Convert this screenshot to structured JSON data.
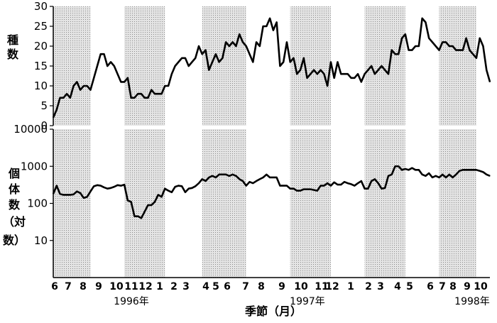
{
  "chart_data": [
    {
      "type": "line",
      "ylabel": [
        "種",
        "数"
      ],
      "ylim": [
        0,
        30
      ],
      "yticks": [
        "0",
        "5",
        "10",
        "15",
        "20",
        "25",
        "30"
      ],
      "grid": false,
      "x": [
        0,
        1,
        2,
        3,
        4,
        5,
        6,
        7,
        8,
        9,
        10,
        11,
        12,
        13,
        14,
        15,
        16,
        17,
        18,
        19,
        20,
        21,
        22,
        23,
        24,
        25,
        26,
        27,
        28,
        29,
        30,
        31,
        32,
        33,
        34,
        35,
        36,
        37,
        38,
        39,
        40,
        41,
        42,
        43,
        44,
        45,
        46,
        47,
        48,
        49,
        50,
        51,
        52,
        53,
        54,
        55,
        56,
        57,
        58,
        59,
        60,
        61,
        62,
        63,
        64,
        65,
        66,
        67,
        68,
        69,
        70,
        71,
        72,
        73,
        74,
        75,
        76,
        77,
        78,
        79,
        80,
        81,
        82,
        83,
        84,
        85,
        86,
        87,
        88,
        89,
        90,
        91,
        92,
        93,
        94,
        95,
        96,
        97,
        98,
        99,
        100,
        101,
        102,
        103,
        104,
        105,
        106,
        107,
        108,
        109,
        110,
        111,
        112,
        113,
        114,
        115,
        116,
        117,
        118,
        119,
        120,
        121,
        122,
        123,
        124,
        125,
        126,
        127,
        128,
        129
      ],
      "values": [
        2,
        4,
        7,
        7,
        8,
        7,
        10,
        11,
        9,
        10,
        10,
        9,
        12,
        15,
        18,
        18,
        15,
        16,
        15,
        13,
        11,
        11,
        12,
        7,
        7,
        8,
        8,
        7,
        7,
        9,
        8,
        8,
        8,
        10,
        10,
        13,
        15,
        16,
        17,
        17,
        15,
        16,
        17,
        20,
        18,
        19,
        14,
        16,
        18,
        16,
        17,
        21,
        20,
        21,
        20,
        23,
        21,
        20,
        18,
        16,
        21,
        20,
        25,
        25,
        27,
        24,
        26,
        15,
        16,
        21,
        16,
        17,
        13,
        14,
        17,
        12,
        13,
        14,
        13,
        14,
        13,
        10,
        16,
        12,
        16,
        13,
        13,
        13,
        12,
        12,
        13,
        11,
        13,
        14,
        15,
        13,
        14,
        15,
        14,
        13,
        19,
        18,
        18,
        22,
        23,
        19,
        19,
        20,
        20,
        27,
        26,
        22,
        21,
        20,
        19,
        21,
        21,
        20,
        20,
        19,
        19,
        19,
        22,
        19,
        18,
        17,
        22,
        20,
        14,
        11
      ]
    },
    {
      "type": "line",
      "ylabel": [
        "個",
        "体",
        "数",
        "（対",
        "数）"
      ],
      "yscale": "log",
      "ylim": [
        1,
        10000
      ],
      "yticks": [
        "10",
        "100",
        "1000",
        "10000"
      ],
      "grid": false,
      "x": [
        0,
        1,
        2,
        3,
        4,
        5,
        6,
        7,
        8,
        9,
        10,
        11,
        12,
        13,
        14,
        15,
        16,
        17,
        18,
        19,
        20,
        21,
        22,
        23,
        24,
        25,
        26,
        27,
        28,
        29,
        30,
        31,
        32,
        33,
        34,
        35,
        36,
        37,
        38,
        39,
        40,
        41,
        42,
        43,
        44,
        45,
        46,
        47,
        48,
        49,
        50,
        51,
        52,
        53,
        54,
        55,
        56,
        57,
        58,
        59,
        60,
        61,
        62,
        63,
        64,
        65,
        66,
        67,
        68,
        69,
        70,
        71,
        72,
        73,
        74,
        75,
        76,
        77,
        78,
        79,
        80,
        81,
        82,
        83,
        84,
        85,
        86,
        87,
        88,
        89,
        90,
        91,
        92,
        93,
        94,
        95,
        96,
        97,
        98,
        99,
        100,
        101,
        102,
        103,
        104,
        105,
        106,
        107,
        108,
        109,
        110,
        111,
        112,
        113,
        114,
        115,
        116,
        117,
        118,
        119,
        120,
        121,
        122,
        123,
        124,
        125,
        126,
        127,
        128,
        129
      ],
      "values": [
        180,
        300,
        180,
        170,
        170,
        170,
        175,
        210,
        190,
        140,
        150,
        210,
        290,
        310,
        300,
        270,
        250,
        260,
        280,
        310,
        300,
        320,
        120,
        110,
        45,
        45,
        40,
        60,
        90,
        90,
        110,
        170,
        150,
        250,
        220,
        200,
        280,
        300,
        290,
        200,
        250,
        260,
        290,
        350,
        450,
        400,
        500,
        550,
        500,
        600,
        600,
        600,
        550,
        600,
        550,
        450,
        400,
        300,
        380,
        350,
        400,
        450,
        500,
        600,
        500,
        500,
        500,
        300,
        300,
        300,
        250,
        250,
        220,
        220,
        240,
        240,
        240,
        230,
        220,
        300,
        300,
        350,
        300,
        370,
        320,
        320,
        380,
        350,
        330,
        300,
        350,
        400,
        250,
        250,
        400,
        450,
        350,
        250,
        260,
        550,
        600,
        1000,
        1000,
        800,
        850,
        800,
        900,
        800,
        800,
        600,
        550,
        650,
        500,
        550,
        500,
        600,
        500,
        600,
        500,
        600,
        750,
        800,
        800,
        800,
        800,
        800,
        750,
        700,
        600,
        550
      ]
    }
  ],
  "seasons": [
    {
      "from": 0,
      "to": 11
    },
    {
      "from": 21,
      "to": 33
    },
    {
      "from": 44,
      "to": 57
    },
    {
      "from": 70,
      "to": 82
    },
    {
      "from": 92,
      "to": 104
    },
    {
      "from": 114,
      "to": 125
    }
  ],
  "months": [
    "6",
    "7",
    "8",
    "9",
    "10",
    "11",
    "12",
    "1",
    "2",
    "3",
    "4",
    "5",
    "6",
    "7",
    "8",
    "9",
    "10",
    "11",
    "12",
    "1",
    "2",
    "3",
    "4",
    "5",
    "6",
    "7",
    "8",
    "9",
    "10"
  ],
  "years": [
    "1996年",
    "1997年",
    "1998年"
  ],
  "xlabel": "季節（月）",
  "colors": {
    "shade": "#c8c8c8",
    "line": "#000000"
  }
}
